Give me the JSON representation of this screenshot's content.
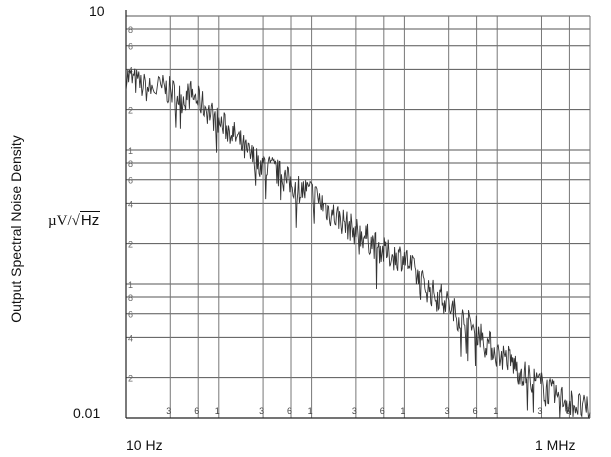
{
  "chart_data": {
    "type": "line",
    "ylabel": "Output Spectral Noise Density",
    "yunit": {
      "prefix": "µV/",
      "radicand": "Hz"
    },
    "y_scale": "log",
    "x_scale": "log",
    "ylim": [
      0.01,
      10
    ],
    "xlim": [
      10,
      1000000
    ],
    "y_tick_labels": [
      "10",
      "0.01"
    ],
    "x_tick_labels": [
      "10 Hz",
      "1 MHz"
    ],
    "y_minor_labels": [
      "8",
      "6",
      "4",
      "2",
      "1",
      "8",
      "6",
      "4",
      "2",
      "1",
      "8",
      "6",
      "4",
      "2"
    ],
    "x_minor_labels": [
      "3",
      "6",
      "1",
      "3",
      "6",
      "1",
      "3",
      "6",
      "1",
      "3",
      "6",
      "1",
      "3",
      "6"
    ],
    "grid": true,
    "series": [
      {
        "x": [
          10,
          13,
          18,
          25,
          32,
          40,
          50,
          63,
          80,
          100,
          130,
          160,
          200,
          250,
          320,
          400,
          500,
          630,
          800,
          1000,
          1300,
          1600,
          2000,
          2500,
          3200,
          4000,
          5000,
          6300,
          8000,
          10000,
          13000,
          16000,
          20000,
          25000,
          32000,
          40000,
          50000,
          63000,
          80000,
          100000,
          130000,
          160000,
          200000,
          250000,
          320000,
          400000,
          500000,
          630000,
          800000,
          1000000
        ],
        "y": [
          3.6,
          3.2,
          2.8,
          2.9,
          2.7,
          2.4,
          2.6,
          2.3,
          1.9,
          1.6,
          1.4,
          1.2,
          0.95,
          0.85,
          0.75,
          0.7,
          0.62,
          0.55,
          0.5,
          0.48,
          0.4,
          0.34,
          0.31,
          0.27,
          0.24,
          0.22,
          0.19,
          0.17,
          0.16,
          0.16,
          0.12,
          0.1,
          0.085,
          0.08,
          0.066,
          0.055,
          0.05,
          0.044,
          0.036,
          0.03,
          0.028,
          0.024,
          0.021,
          0.019,
          0.017,
          0.015,
          0.014,
          0.013,
          0.012,
          0.011
        ]
      }
    ]
  }
}
